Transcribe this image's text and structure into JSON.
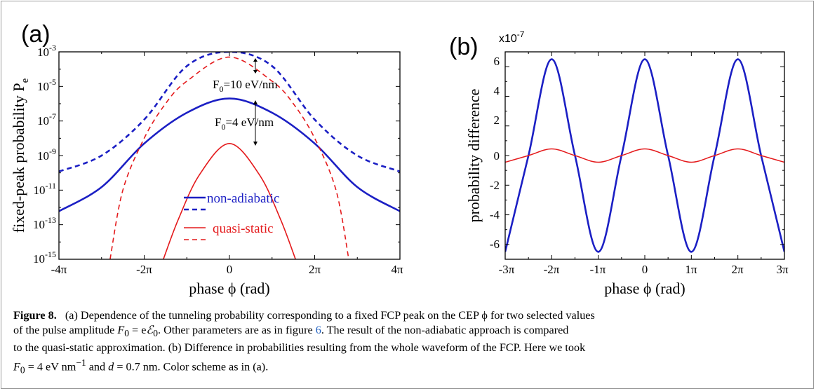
{
  "chart_data": [
    {
      "type": "line",
      "panel_label": "(a)",
      "xlabel": "phase ϕ  (rad)",
      "ylabel": "fixed-peak probability  P",
      "ylabel_sub": "e",
      "xlim_pi": [
        -4,
        4
      ],
      "ylim": [
        1e-15,
        0.001
      ],
      "yscale": "log",
      "x_tick_labels": [
        "-4π",
        "-2π",
        "0",
        "2π",
        "4π"
      ],
      "y_tick_labels": [
        {
          "base": "10",
          "exp": "-3"
        },
        {
          "base": "10",
          "exp": "-5"
        },
        {
          "base": "10",
          "exp": "-7"
        },
        {
          "base": "10",
          "exp": "-9"
        },
        {
          "base": "10",
          "exp": "-11"
        },
        {
          "base": "10",
          "exp": "-13"
        },
        {
          "base": "10",
          "exp": "-15"
        }
      ],
      "annotations": [
        {
          "main": "F",
          "sub": "0",
          "rest": "=10 eV/nm"
        },
        {
          "main": "F",
          "sub": "0",
          "rest": "=4 eV/nm"
        }
      ],
      "legend": [
        {
          "label": "non-adiabatic",
          "color": "#1b1fc4"
        },
        {
          "label": "quasi-static",
          "color": "#e41a1c"
        }
      ],
      "series": [
        {
          "x_pi": [
            -4,
            -3,
            -2,
            -1,
            0,
            1,
            2,
            3,
            4
          ],
          "y": [
            1.2e-10,
            1e-09,
            1.2e-07,
            0.00015,
            0.001,
            0.00015,
            1.2e-07,
            1e-09,
            1.2e-10
          ],
          "color": "#1b1fc4",
          "dash": true
        },
        {
          "x_pi": [
            -4,
            -3,
            -2,
            -1,
            0,
            1,
            2,
            3,
            4
          ],
          "y": [
            6e-13,
            1.5e-11,
            5e-09,
            3e-07,
            2e-06,
            3e-07,
            5e-09,
            1.5e-11,
            6e-13
          ],
          "color": "#1b1fc4",
          "dash": false
        },
        {
          "x_pi": [
            -2.8,
            -2.5,
            -2,
            -1.5,
            -1,
            0,
            1,
            1.5,
            2,
            2.5,
            2.8
          ],
          "y": [
            1e-15,
            1e-11,
            1e-08,
            1e-06,
            2e-05,
            0.0005,
            2e-05,
            1e-06,
            1e-08,
            1e-11,
            1e-15
          ],
          "color": "#e41a1c",
          "dash": true
        },
        {
          "x_pi": [
            -1.55,
            -1.2,
            -0.7,
            0,
            0.7,
            1.2,
            1.55
          ],
          "y": [
            1e-15,
            2e-13,
            8e-11,
            5e-09,
            8e-11,
            2e-13,
            1e-15
          ],
          "color": "#e41a1c",
          "dash": false
        }
      ]
    },
    {
      "type": "line",
      "panel_label": "(b)",
      "xlabel": "phase ϕ  (rad)",
      "ylabel": "probability difference",
      "scale_label": "x10",
      "scale_exp": "-7",
      "xlim_pi": [
        -3,
        3
      ],
      "ylim": [
        -7,
        7
      ],
      "x_tick_labels": [
        "-3π",
        "-2π",
        "-1π",
        "0",
        "1π",
        "2π",
        "3π"
      ],
      "y_tick_labels": [
        "6",
        "4",
        "2",
        "0",
        "-2",
        "-4",
        "-6"
      ],
      "series": [
        {
          "x_pi": [
            -3,
            -2.5,
            -2,
            -1.5,
            -1,
            -0.5,
            0,
            0.5,
            1,
            1.5,
            2,
            2.5,
            3
          ],
          "y": [
            -6.5,
            0,
            6.5,
            0,
            -6.5,
            0,
            6.5,
            0,
            -6.5,
            0,
            6.5,
            0,
            -6.5
          ],
          "color": "#1b1fc4",
          "width": "thick"
        },
        {
          "x_pi": [
            -3,
            -2.5,
            -2,
            -1.5,
            -1,
            -0.5,
            0,
            0.5,
            1,
            1.5,
            2,
            2.5,
            3
          ],
          "y": [
            -0.45,
            0,
            0.45,
            0,
            -0.45,
            0,
            0.45,
            0,
            -0.45,
            0,
            0.45,
            0,
            -0.45
          ],
          "color": "#e41a1c",
          "width": "thin"
        }
      ]
    }
  ],
  "caption": {
    "label": "Figure 8.",
    "l1": "(a) Dependence of the tunneling probability corresponding to a fixed FCP peak on the CEP ϕ for two selected values",
    "l2a": "of the pulse amplitude ",
    "l2b": ". Other parameters are as in figure ",
    "l2link": "6",
    "l2c": ". The result of the non-adiabatic approach is compared",
    "l3": "to the quasi-static approximation. (b) Difference in probabilities resulting from the whole waveform of the FCP. Here we took",
    "l4a": " = 4 eV nm",
    "l4b": " and ",
    "l4c": " = 0.7 nm. Color scheme as in (a).",
    "F": "F",
    "sub0": "0",
    "eq": " = e",
    "calE": "ℰ",
    "sup": "−1",
    "d": "d"
  }
}
